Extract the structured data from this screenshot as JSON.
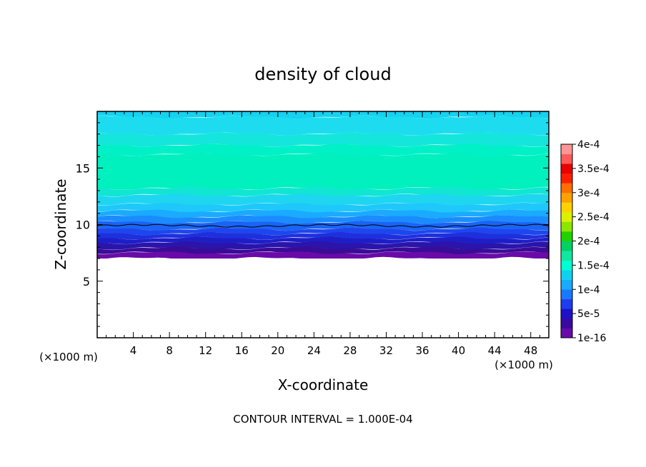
{
  "chart_data": {
    "type": "heatmap",
    "title": "density of cloud",
    "xlabel": "X-coordinate",
    "ylabel": "Z-coordinate",
    "x_unit_left": "(×1000 m)",
    "x_unit_right": "(×1000 m)",
    "footer": "CONTOUR INTERVAL = 1.000E-04",
    "xlim": [
      0,
      50
    ],
    "ylim": [
      0,
      20
    ],
    "xticks": [
      4,
      8,
      12,
      16,
      20,
      24,
      28,
      32,
      36,
      40,
      44,
      48
    ],
    "yticks": [
      5,
      10,
      15
    ],
    "colorbar": {
      "labels": [
        "4e-4",
        "3.5e-4",
        "3e-4",
        "2.5e-4",
        "2e-4",
        "1.5e-4",
        "1e-4",
        "5e-5",
        "1e-16"
      ],
      "colors_bottom_to_top": [
        "#6a0aa8",
        "#3a0aa0",
        "#1e10c8",
        "#1e3cf0",
        "#1a78ff",
        "#1aaaff",
        "#10d2ee",
        "#00ffd2",
        "#12e6a0",
        "#00d264",
        "#22d200",
        "#8ce600",
        "#dcf000",
        "#ffd200",
        "#ffa000",
        "#ff6e00",
        "#ff1e00",
        "#e60000",
        "#ff5a5a",
        "#ff9696"
      ]
    },
    "layers": [
      {
        "z": [
          19.5,
          20.0
        ],
        "color": "#14d2f0"
      },
      {
        "z": [
          18.0,
          19.5
        ],
        "color": "#1edcf0"
      },
      {
        "z": [
          17.0,
          18.0
        ],
        "color": "#14e6dc"
      },
      {
        "z": [
          16.2,
          17.0
        ],
        "color": "#00f0c8"
      },
      {
        "z": [
          13.2,
          16.2
        ],
        "color": "#00f0be"
      },
      {
        "z": [
          12.6,
          13.2
        ],
        "color": "#10e6d2"
      },
      {
        "z": [
          11.8,
          12.6
        ],
        "color": "#1ed6f0"
      },
      {
        "z": [
          11.2,
          11.8
        ],
        "color": "#1ec8fa"
      },
      {
        "z": [
          10.7,
          11.2
        ],
        "color": "#1aaaff"
      },
      {
        "z": [
          10.2,
          10.7
        ],
        "color": "#1a8cff"
      },
      {
        "z": [
          9.6,
          10.2
        ],
        "color": "#1a64f5"
      },
      {
        "z": [
          9.2,
          9.6
        ],
        "color": "#1e46ee"
      },
      {
        "z": [
          8.8,
          9.2
        ],
        "color": "#1e30dc"
      },
      {
        "z": [
          8.4,
          8.8
        ],
        "color": "#1e1ec8"
      },
      {
        "z": [
          7.9,
          8.4
        ],
        "color": "#2a14aa"
      },
      {
        "z": [
          7.5,
          7.9
        ],
        "color": "#3a0c96"
      },
      {
        "z": [
          7.0,
          7.5
        ],
        "color": "#6a0aa8"
      }
    ],
    "contour_line_z": 9.9,
    "data_bottom_z": 7.0
  }
}
